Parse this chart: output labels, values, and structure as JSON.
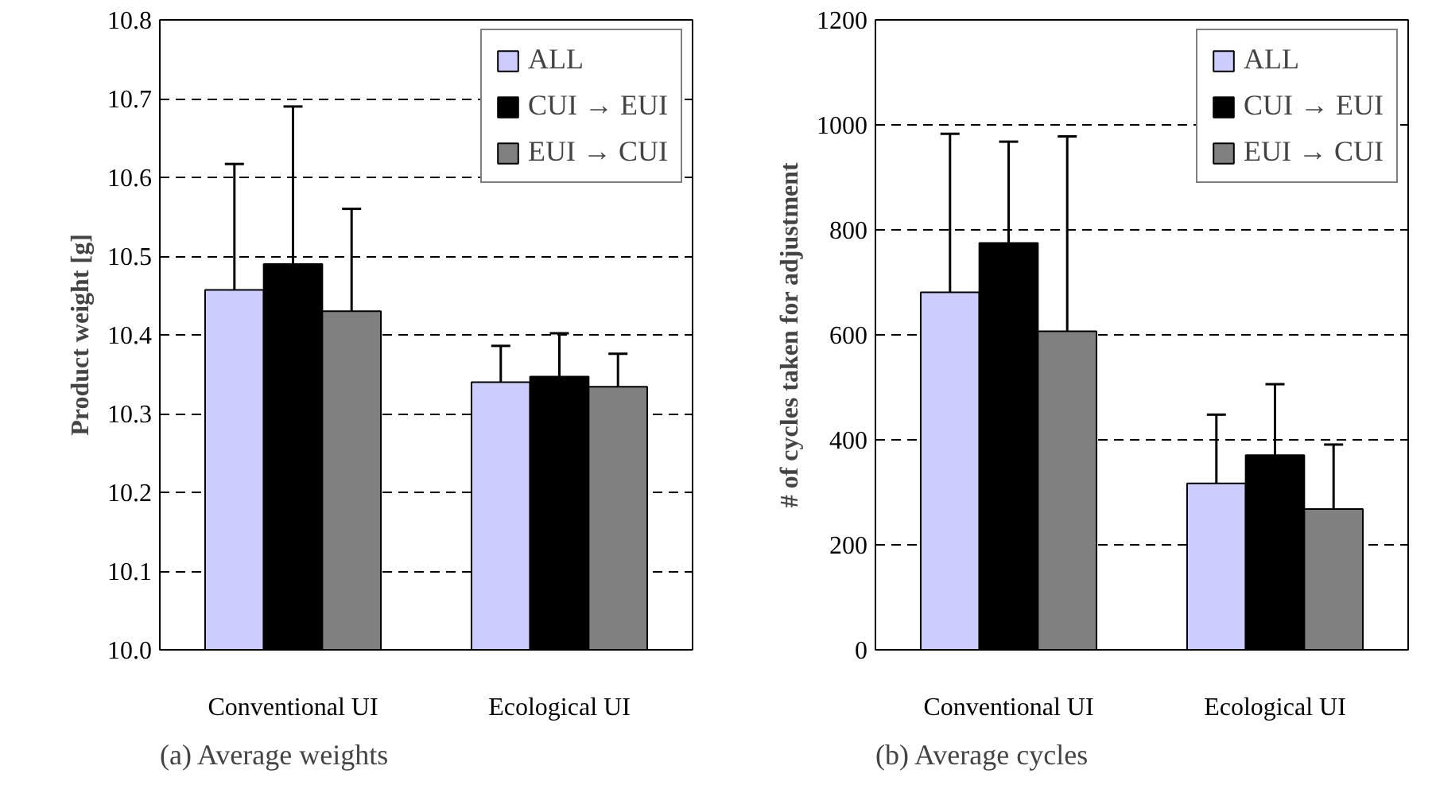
{
  "chart_data": [
    {
      "type": "bar",
      "title": "(a) Average weights",
      "ylabel": "Product weight [g]",
      "categories": [
        "Conventional UI",
        "Ecological UI"
      ],
      "series": [
        {
          "name": "ALL",
          "color": "#ccccff",
          "values": [
            10.457,
            10.34
          ],
          "errors": [
            [
              10.457,
              10.617
            ],
            [
              10.34,
              10.386
            ]
          ]
        },
        {
          "name": "CUI → EUI",
          "color": "#000000",
          "values": [
            10.49,
            10.347
          ],
          "errors": [
            [
              10.49,
              10.69
            ],
            [
              10.347,
              10.402
            ]
          ]
        },
        {
          "name": "EUI → CUI",
          "color": "#808080",
          "values": [
            10.43,
            10.334
          ],
          "errors": [
            [
              10.43,
              10.56
            ],
            [
              10.334,
              10.376
            ]
          ]
        }
      ],
      "ylim": [
        10.0,
        10.8
      ],
      "yticks": [
        {
          "value": 10.0,
          "label": "10.0"
        },
        10.1,
        10.2,
        10.3,
        10.4,
        10.5,
        10.6,
        10.7,
        10.8
      ],
      "grid": "y",
      "legend": "top right"
    },
    {
      "type": "bar",
      "title": "(b) Average cycles",
      "ylabel": "# of cycles taken for adjustment",
      "categories": [
        "Conventional UI",
        "Ecological UI"
      ],
      "series": [
        {
          "name": "ALL",
          "color": "#ccccff",
          "values": [
            681,
            317
          ],
          "errors": [
            [
              681,
              983
            ],
            [
              317,
              448
            ]
          ]
        },
        {
          "name": "CUI → EUI",
          "color": "#000000",
          "values": [
            775,
            371
          ],
          "errors": [
            [
              775,
              968
            ],
            [
              371,
              506
            ]
          ]
        },
        {
          "name": "EUI → CUI",
          "color": "#808080",
          "values": [
            607,
            268
          ],
          "errors": [
            [
              607,
              978
            ],
            [
              268,
              391
            ]
          ]
        }
      ],
      "ylim": [
        0,
        1200
      ],
      "yticks": [
        0,
        200,
        400,
        600,
        800,
        1000,
        1200
      ],
      "grid": "y",
      "legend": "top right"
    }
  ]
}
